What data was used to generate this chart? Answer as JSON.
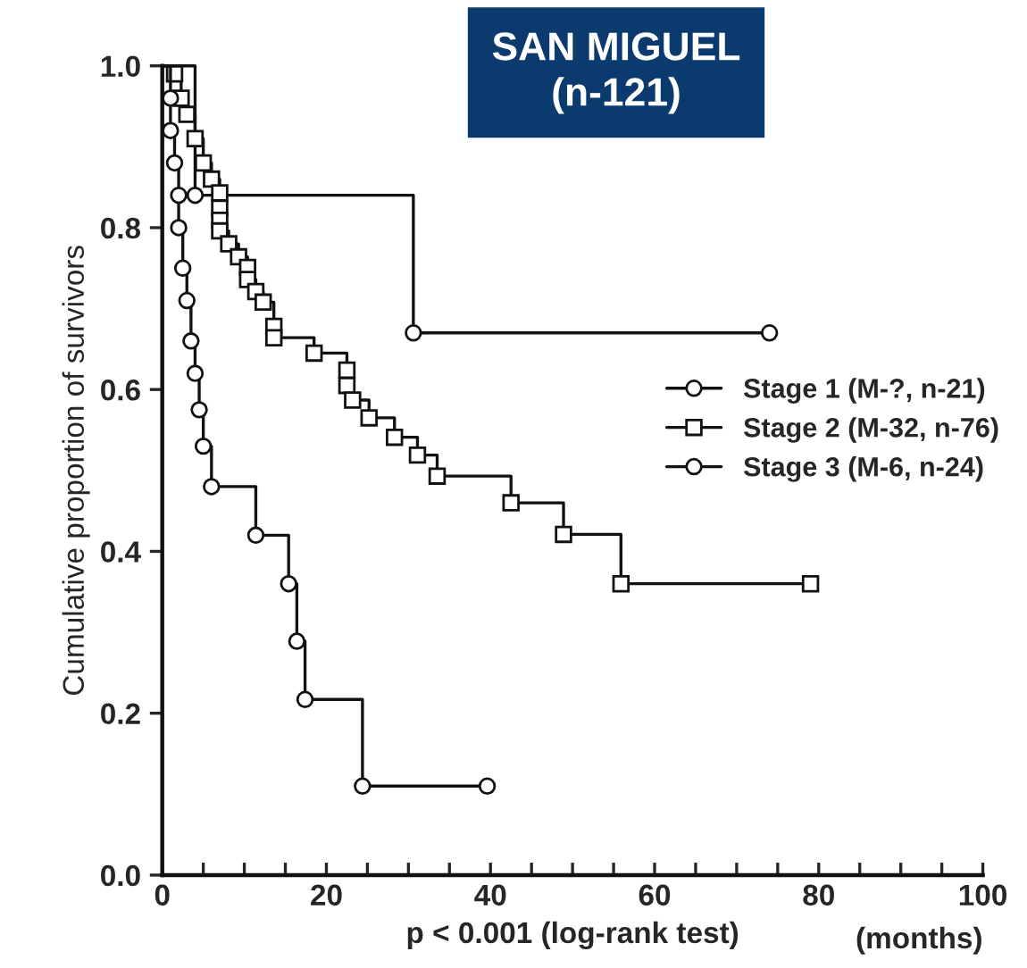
{
  "chart_data": {
    "type": "step",
    "title": "SAN MIGUEL",
    "subtitle": "(n-121)",
    "ylabel": "Cumulative proportion of survivors",
    "xlabel": "p < 0.001 (log-rank test)",
    "annotations": [
      "(months)"
    ],
    "xlim": [
      0,
      100
    ],
    "ylim": [
      0,
      1.0
    ],
    "xticks": [
      0,
      {
        "value": 5,
        "label": null
      },
      {
        "value": 10,
        "label": null
      },
      {
        "value": 15,
        "label": null
      },
      20,
      {
        "value": 25,
        "label": null
      },
      {
        "value": 30,
        "label": null
      },
      {
        "value": 35,
        "label": null
      },
      40,
      {
        "value": 45,
        "label": null
      },
      {
        "value": 50,
        "label": null
      },
      {
        "value": 55,
        "label": null
      },
      60,
      {
        "value": 65,
        "label": null
      },
      {
        "value": 70,
        "label": null
      },
      {
        "value": 75,
        "label": null
      },
      80,
      {
        "value": 85,
        "label": null
      },
      {
        "value": 90,
        "label": null
      },
      {
        "value": 95,
        "label": null
      },
      100
    ],
    "yticks": [
      {
        "value": 0,
        "label": "0.0"
      },
      {
        "value": 0.2,
        "label": "0.2"
      },
      {
        "value": 0.4,
        "label": "0.4"
      },
      {
        "value": 0.6,
        "label": "0.6"
      },
      {
        "value": 0.8,
        "label": "0.8"
      },
      {
        "value": 1.0,
        "label": "1.0"
      }
    ],
    "grid": false,
    "legend": "right",
    "series": [
      {
        "name": "Stage 1 (M-?, n-21)",
        "color": "#111111",
        "marker": "circle",
        "x": [
          0,
          4,
          30.6,
          74
        ],
        "values": [
          1.0,
          0.84,
          0.67,
          0.67
        ]
      },
      {
        "name": "Stage 2 (M-32, n-76)",
        "color": "#111111",
        "marker": "square",
        "x": [
          0,
          1.5,
          2.3,
          3,
          4,
          5,
          6,
          7,
          7,
          7,
          7,
          8.1,
          9.3,
          10.4,
          10.4,
          11.4,
          12.3,
          13.6,
          13.6,
          18.5,
          22.5,
          22.5,
          23.2,
          25.2,
          28.3,
          31.1,
          33.5,
          42.5,
          48.9,
          55.9,
          79
        ],
        "values": [
          1.0,
          0.99,
          0.96,
          0.94,
          0.91,
          0.88,
          0.86,
          0.843,
          0.824,
          0.809,
          0.796,
          0.78,
          0.764,
          0.751,
          0.736,
          0.721,
          0.708,
          0.678,
          0.664,
          0.645,
          0.624,
          0.605,
          0.587,
          0.565,
          0.541,
          0.519,
          0.493,
          0.46,
          0.421,
          0.36,
          0.36
        ]
      },
      {
        "name": "Stage 3 (M-6, n-24)",
        "color": "#111111",
        "marker": "circle",
        "x": [
          0,
          1,
          1,
          1.5,
          2,
          2,
          2.5,
          3,
          3.5,
          4,
          4.5,
          5,
          6,
          11.4,
          15.4,
          16.4,
          17.4,
          24.4,
          39.6
        ],
        "values": [
          1.0,
          0.96,
          0.92,
          0.88,
          0.84,
          0.8,
          0.75,
          0.71,
          0.66,
          0.62,
          0.575,
          0.53,
          0.48,
          0.42,
          0.36,
          0.289,
          0.217,
          0.11,
          0.11
        ]
      }
    ]
  }
}
